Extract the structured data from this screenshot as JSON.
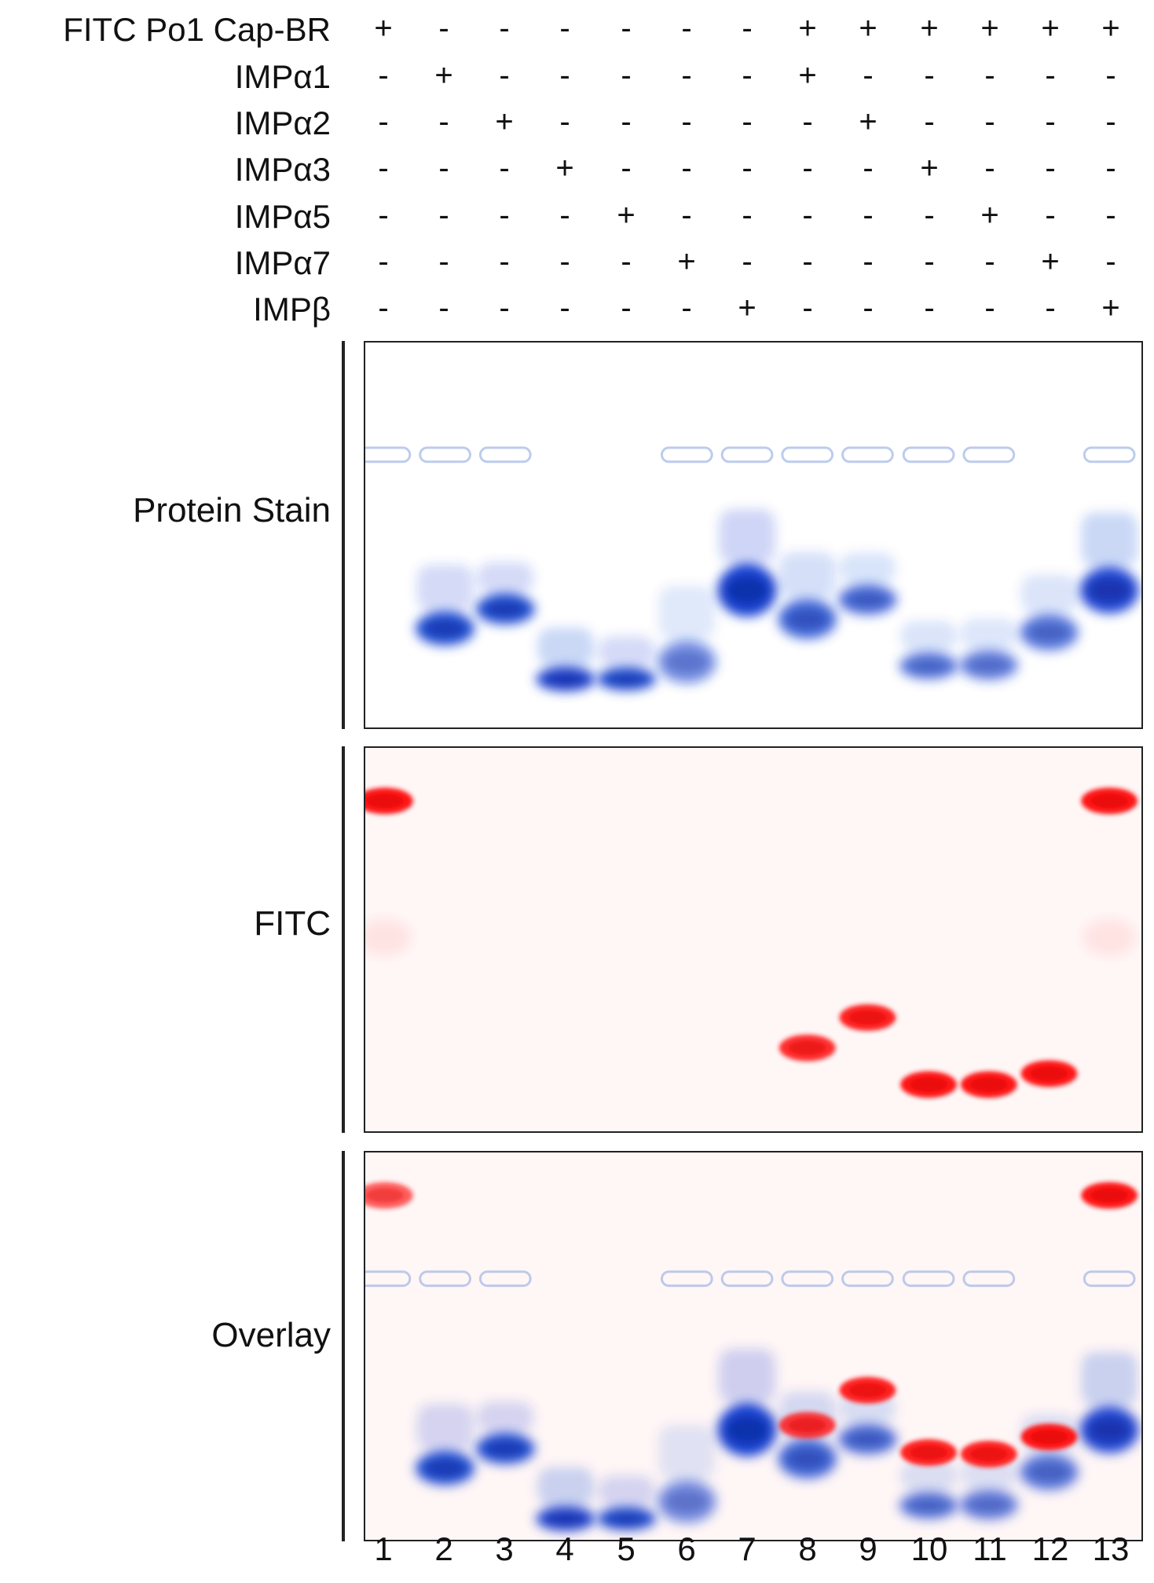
{
  "rows": [
    {
      "label": "FITC Po1 Cap-BR",
      "values": [
        "+",
        "-",
        "-",
        "-",
        "-",
        "-",
        "-",
        "+",
        "+",
        "+",
        "+",
        "+",
        "+"
      ]
    },
    {
      "label": "IMPα1",
      "values": [
        "-",
        "+",
        "-",
        "-",
        "-",
        "-",
        "-",
        "+",
        "-",
        "-",
        "-",
        "-",
        "-"
      ]
    },
    {
      "label": "IMPα2",
      "values": [
        "-",
        "-",
        "+",
        "-",
        "-",
        "-",
        "-",
        "-",
        "+",
        "-",
        "-",
        "-",
        "-"
      ]
    },
    {
      "label": "IMPα3",
      "values": [
        "-",
        "-",
        "-",
        "+",
        "-",
        "-",
        "-",
        "-",
        "-",
        "+",
        "-",
        "-",
        "-"
      ]
    },
    {
      "label": "IMPα5",
      "values": [
        "-",
        "-",
        "-",
        "-",
        "+",
        "-",
        "-",
        "-",
        "-",
        "-",
        "+",
        "-",
        "-"
      ]
    },
    {
      "label": "IMPα7",
      "values": [
        "-",
        "-",
        "-",
        "-",
        "-",
        "+",
        "-",
        "-",
        "-",
        "-",
        "-",
        "+",
        "-"
      ]
    },
    {
      "label": "IMPβ",
      "values": [
        "-",
        "-",
        "-",
        "-",
        "-",
        "-",
        "+",
        "-",
        "-",
        "-",
        "-",
        "-",
        "+"
      ]
    }
  ],
  "panels": [
    {
      "label": "Protein Stain",
      "mode": "protein"
    },
    {
      "label": "FITC",
      "mode": "fitc"
    },
    {
      "label": "Overlay",
      "mode": "overlay"
    }
  ],
  "lanes": [
    "1",
    "2",
    "3",
    "4",
    "5",
    "6",
    "7",
    "8",
    "9",
    "10",
    "11",
    "12",
    "13"
  ],
  "colors": {
    "protein": "#1a45d6",
    "fitc": "#ff1818",
    "wells": "#9fb6e6"
  }
}
